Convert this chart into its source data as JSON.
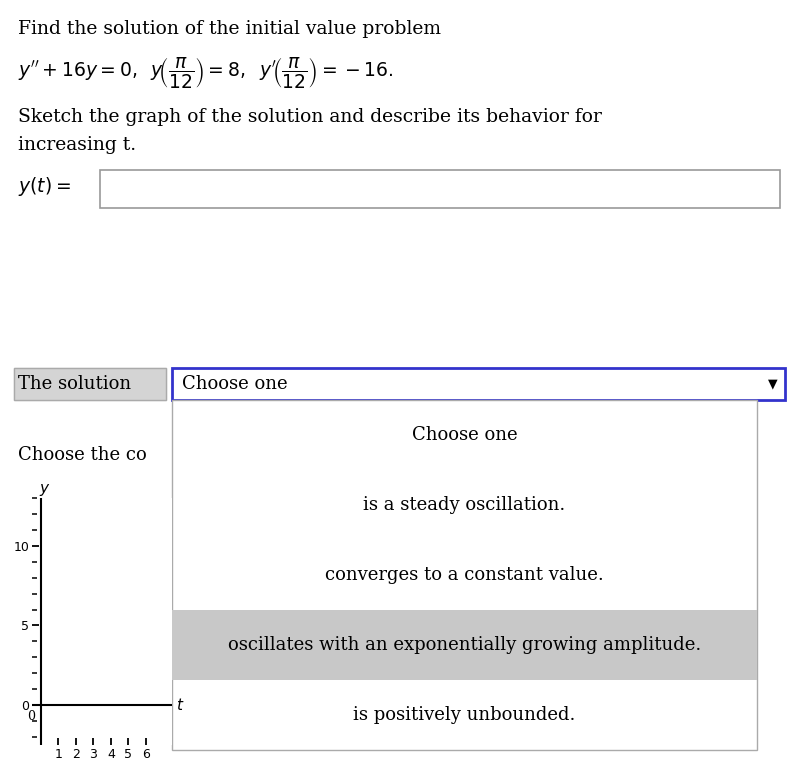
{
  "bg_color": "#ffffff",
  "text_color": "#000000",
  "title_line1": "Find the solution of the initial value problem",
  "sketch_line1": "Sketch the graph of the solution and describe its behavior for",
  "sketch_line2": "increasing t.",
  "solution_label": "The solution",
  "dropdown_text": "Choose one",
  "dropdown_border_color": "#3333cc",
  "dropdown_arrow": "▼",
  "popup_items": [
    {
      "text": "Choose one",
      "highlight": false
    },
    {
      "text": "is a steady oscillation.",
      "highlight": false
    },
    {
      "text": "converges to a constant value.",
      "highlight": false
    },
    {
      "text": "oscillates with an exponentially growing amplitude.",
      "highlight": true
    },
    {
      "text": "is positively unbounded.",
      "highlight": false
    }
  ],
  "highlight_color": "#c8c8c8",
  "choose_the_co_text": "Choose the co",
  "solution_bg_color": "#d4d4d4",
  "y_ticks": [
    0,
    5,
    10
  ],
  "t_ticks": [
    1,
    2,
    3,
    4,
    5,
    6
  ]
}
